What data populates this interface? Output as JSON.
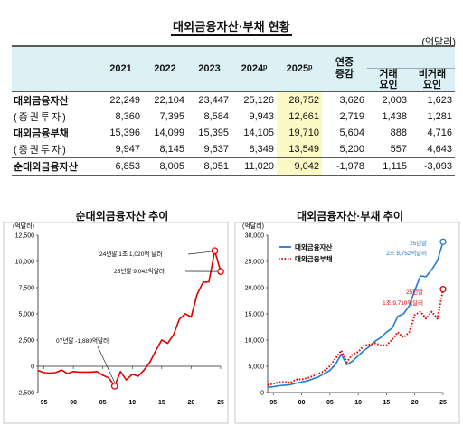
{
  "title": "대외금융자산·부채 현황",
  "unit": "(억달러)",
  "table": {
    "headers": [
      "2021",
      "2022",
      "2023",
      "2024ᵖ",
      "2025ᵖ",
      "연중증감",
      "거래요인",
      "비거래요인"
    ],
    "header_group": "연중 증감",
    "rows": [
      {
        "label": "대외금융자산",
        "values": [
          "22,249",
          "22,104",
          "23,447",
          "25,126",
          "28,752",
          "3,626",
          "2,003",
          "1,623"
        ]
      },
      {
        "label": "(증권투자)",
        "values": [
          "8,360",
          "7,395",
          "8,584",
          "9,943",
          "12,661",
          "2,719",
          "1,438",
          "1,281"
        ]
      },
      {
        "label": "대외금융부채",
        "values": [
          "15,396",
          "14,099",
          "15,395",
          "14,105",
          "19,710",
          "5,604",
          "888",
          "4,716"
        ]
      },
      {
        "label": "(증권투자)",
        "values": [
          "9,947",
          "8,145",
          "9,537",
          "8,349",
          "13,549",
          "5,200",
          "557",
          "4,643"
        ]
      },
      {
        "label": "순대외금융자산",
        "values": [
          "6,853",
          "8,005",
          "8,051",
          "11,020",
          "9,042",
          "-1,978",
          "1,115",
          "-3,093"
        ]
      }
    ],
    "highlight_color": "#fdf9c4",
    "header_color": "#dbf1f6"
  },
  "chart_data": [
    {
      "type": "line",
      "title": "순대외금융자산 추이",
      "ylabel": "(억달러)",
      "ylim": [
        -2500,
        12500
      ],
      "yticks": [
        "12,500",
        "10,000",
        "7,500",
        "5,000",
        "2,500",
        "0",
        "-2,500"
      ],
      "xticks": [
        "95",
        "00",
        "05",
        "10",
        "15",
        "20",
        "25"
      ],
      "x": [
        1994,
        1995,
        1996,
        1997,
        1998,
        1999,
        2000,
        2001,
        2002,
        2003,
        2004,
        2005,
        2006,
        2007,
        2008,
        2009,
        2010,
        2011,
        2012,
        2013,
        2014,
        2015,
        2016,
        2017,
        2018,
        2019,
        2020,
        2021,
        2022,
        2023,
        2024,
        2025
      ],
      "series": [
        {
          "values": [
            -400,
            -600,
            -650,
            -600,
            -350,
            -700,
            -500,
            -550,
            -550,
            -550,
            -500,
            -850,
            -1100,
            -1889,
            -500,
            -1300,
            -750,
            -950,
            -350,
            400,
            1500,
            2500,
            2200,
            3000,
            4500,
            5000,
            4700,
            6853,
            8005,
            8051,
            11020,
            9042
          ],
          "color": "#e00000"
        }
      ],
      "annotations": [
        "24년말 1조 1,020억 달러",
        "25년말 9,042억달러",
        "07년말 -1,889억달러"
      ],
      "grid": false
    },
    {
      "type": "line",
      "title": "대외금융자산·부채 추이",
      "ylabel": "(억달러)",
      "ylim": [
        0,
        30000
      ],
      "yticks": [
        "30,000",
        "25,000",
        "20,000",
        "15,000",
        "10,000",
        "5,000",
        "0"
      ],
      "xticks": [
        "95",
        "00",
        "05",
        "10",
        "15",
        "20",
        "25"
      ],
      "x": [
        1994,
        1995,
        1996,
        1997,
        1998,
        1999,
        2000,
        2001,
        2002,
        2003,
        2004,
        2005,
        2006,
        2007,
        2008,
        2009,
        2010,
        2011,
        2012,
        2013,
        2014,
        2015,
        2016,
        2017,
        2018,
        2019,
        2020,
        2021,
        2022,
        2023,
        2024,
        2025
      ],
      "series": [
        {
          "name": "대외금융자산",
          "color": "#1f7bd0",
          "style": "solid",
          "values": [
            1000,
            1100,
            1300,
            1400,
            1500,
            1800,
            2000,
            2200,
            2600,
            3000,
            3600,
            4200,
            5400,
            7300,
            5300,
            6000,
            7000,
            8000,
            8800,
            9800,
            10500,
            11500,
            12300,
            14500,
            15000,
            16500,
            19500,
            22249,
            22104,
            23447,
            25126,
            28752
          ]
        },
        {
          "name": "대외금융부채",
          "color": "#e00000",
          "style": "dotted",
          "values": [
            1400,
            1700,
            1950,
            2000,
            1850,
            2500,
            2500,
            2750,
            3150,
            3550,
            4100,
            5050,
            6500,
            8000,
            5800,
            7300,
            7750,
            8950,
            9150,
            9400,
            9000,
            9000,
            10100,
            11500,
            10500,
            11500,
            14800,
            15396,
            14099,
            15395,
            14105,
            19710
          ]
        }
      ],
      "annotations": [
        "25년말 2조 8,752억달러",
        "25년말 1조 9,710억달러"
      ],
      "grid": false
    }
  ]
}
